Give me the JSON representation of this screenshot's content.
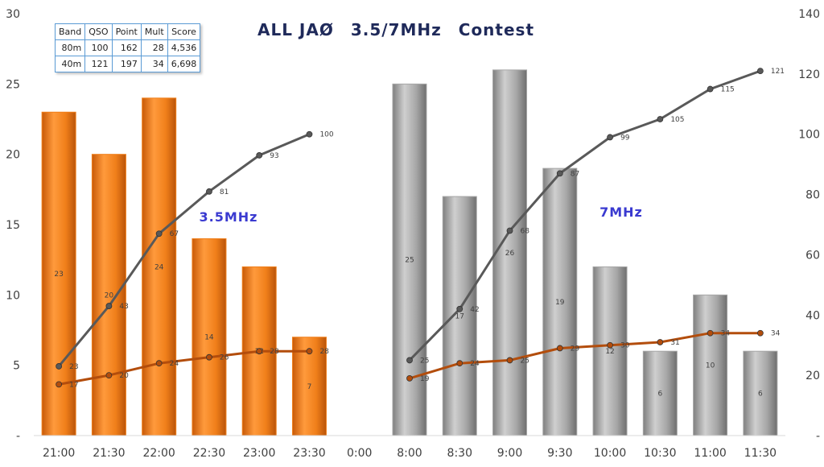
{
  "title": "ALL JAØ　3.5/7MHz　Contest",
  "summary_table": {
    "headers": [
      "Band",
      "QSO",
      "Point",
      "Mult",
      "Score"
    ],
    "rows": [
      [
        "80m",
        "100",
        "162",
        "28",
        "4,536"
      ],
      [
        "40m",
        "121",
        "197",
        "34",
        "6,698"
      ]
    ]
  },
  "annotations": {
    "band_80m": "3.5MHz",
    "band_40m": "7MHz"
  },
  "colors": {
    "bar_80m": "#f07f1a",
    "bar_40m": "#a6a6a6",
    "line_qso": "#595959",
    "line_mult": "#b34d0c"
  },
  "chart_data": {
    "type": "bar",
    "categories": [
      "21:00",
      "21:30",
      "22:00",
      "22:30",
      "23:00",
      "23:30",
      "0:00",
      "8:00",
      "8:30",
      "9:00",
      "9:30",
      "10:00",
      "10:30",
      "11:00",
      "11:30"
    ],
    "y_left": {
      "ylim": [
        0,
        30
      ],
      "ticks": [
        "-",
        "5",
        "10",
        "15",
        "20",
        "25",
        "30"
      ]
    },
    "y_right": {
      "ylim": [
        0,
        140
      ],
      "ticks": [
        "-",
        "20",
        "40",
        "60",
        "80",
        "100",
        "120",
        "140"
      ]
    },
    "grid": false,
    "series": [
      {
        "axis": "left",
        "kind": "bar",
        "band": "80m",
        "values": [
          23,
          20,
          24,
          14,
          12,
          7,
          null,
          null,
          null,
          null,
          null,
          null,
          null,
          null,
          null
        ]
      },
      {
        "axis": "left",
        "kind": "bar",
        "band": "40m",
        "values": [
          null,
          null,
          null,
          null,
          null,
          null,
          null,
          25,
          17,
          26,
          19,
          12,
          6,
          10,
          6
        ]
      },
      {
        "axis": "right",
        "kind": "line",
        "band": "80m",
        "values": [
          23,
          43,
          67,
          81,
          93,
          100,
          null,
          null,
          null,
          null,
          null,
          null,
          null,
          null,
          null
        ]
      },
      {
        "axis": "right",
        "kind": "line",
        "band": "40m",
        "values": [
          null,
          null,
          null,
          null,
          null,
          null,
          null,
          25,
          42,
          68,
          87,
          99,
          105,
          115,
          121
        ]
      },
      {
        "axis": "right",
        "kind": "line",
        "band": "80m",
        "values": [
          17,
          20,
          24,
          26,
          28,
          28,
          null,
          null,
          null,
          null,
          null,
          null,
          null,
          null,
          null
        ]
      },
      {
        "axis": "right",
        "kind": "line",
        "band": "40m",
        "values": [
          null,
          null,
          null,
          null,
          null,
          null,
          null,
          19,
          24,
          25,
          29,
          30,
          31,
          34,
          34
        ]
      }
    ]
  }
}
